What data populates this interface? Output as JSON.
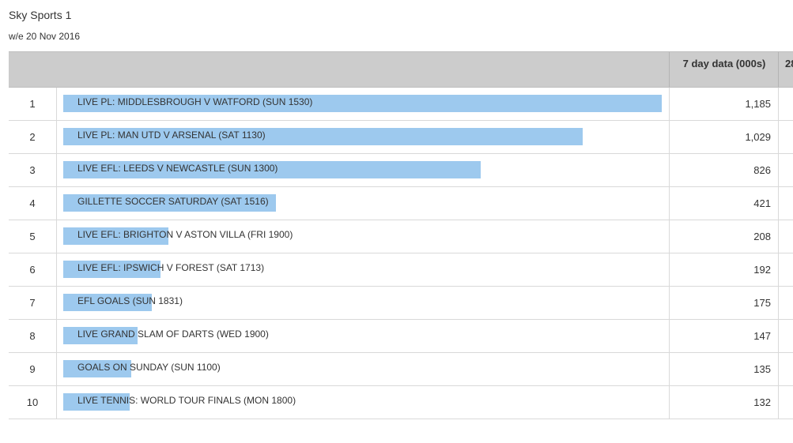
{
  "page": {
    "title": "Sky Sports 1",
    "subtitle": "w/e 20 Nov 2016"
  },
  "table": {
    "headers": {
      "seven_day": "7 day data (000s)",
      "twentyeight_day": "28"
    }
  },
  "colors": {
    "bar": "#9dc9ee",
    "header_bg": "#cccccc"
  },
  "chart_data": {
    "type": "bar",
    "orientation": "horizontal",
    "title": "Sky Sports 1",
    "subtitle": "w/e 20 Nov 2016",
    "value_label": "7 day data (000s)",
    "ranks": [
      1,
      2,
      3,
      4,
      5,
      6,
      7,
      8,
      9,
      10
    ],
    "categories": [
      "LIVE PL: MIDDLESBROUGH V WATFORD (SUN 1530)",
      "LIVE PL: MAN UTD V ARSENAL (SAT 1130)",
      "LIVE EFL: LEEDS V NEWCASTLE (SUN 1300)",
      "GILLETTE SOCCER SATURDAY (SAT 1516)",
      "LIVE EFL: BRIGHTON V ASTON VILLA (FRI 1900)",
      "LIVE EFL: IPSWICH V FOREST (SAT 1713)",
      "EFL GOALS (SUN 1831)",
      "LIVE GRAND SLAM OF DARTS (WED 1900)",
      "GOALS ON SUNDAY (SUN 1100)",
      "LIVE TENNIS: WORLD TOUR FINALS (MON 1800)"
    ],
    "values": [
      1185,
      1029,
      826,
      421,
      208,
      192,
      175,
      147,
      135,
      132
    ],
    "value_labels": [
      "1,185",
      "1,029",
      "826",
      "421",
      "208",
      "192",
      "175",
      "147",
      "135",
      "132"
    ],
    "xlim": [
      0,
      1185
    ]
  }
}
